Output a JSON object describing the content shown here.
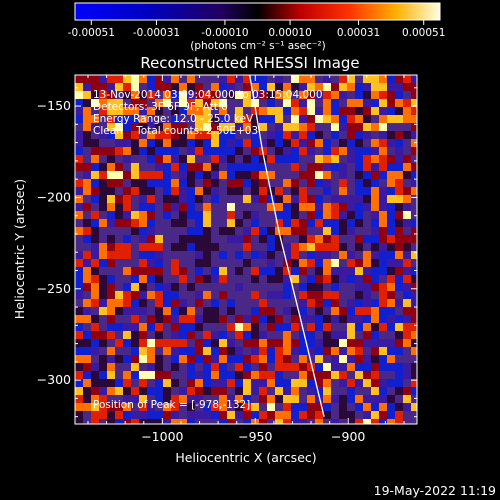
{
  "chart_data": {
    "type": "heatmap",
    "title": "Reconstructed RHESSI Image",
    "xlabel": "Heliocentric X (arcsec)",
    "ylabel": "Heliocentric Y (arcsec)",
    "xlim": [
      -1047,
      -863
    ],
    "ylim": [
      -324,
      -133
    ],
    "x_ticks": [
      -1000,
      -950,
      -900
    ],
    "y_ticks": [
      -150,
      -200,
      -250,
      -300
    ],
    "colorbar": {
      "ticks": [
        "-0.00051",
        "-0.00031",
        "-0.00010",
        "0.00010",
        "0.00031",
        "0.00051"
      ],
      "tick_values": [
        -0.00051,
        -0.00031,
        -0.0001,
        0.0001,
        0.00031,
        0.00051
      ],
      "units": "(photons cm⁻² s⁻¹ asec⁻²)"
    },
    "limb_line": [
      {
        "x": -953,
        "y": -133
      },
      {
        "x": -946,
        "y": -175
      },
      {
        "x": -937,
        "y": -220
      },
      {
        "x": -926,
        "y": -265
      },
      {
        "x": -913,
        "y": -320
      }
    ],
    "annotations": [
      "13-Nov-2014 03:09:04.000 to 03:15:04.000",
      "Detectors: 3F 6F 9F, Att 0",
      "Energy Range: 12.0 - 25.0 keV",
      "Clean    Total counts: 2.50E+03",
      "Position of Peak = [-978,-132]"
    ],
    "peak": {
      "x": -978,
      "y": -132
    }
  },
  "footer": {
    "timestamp": "19-May-2022 11:19"
  }
}
